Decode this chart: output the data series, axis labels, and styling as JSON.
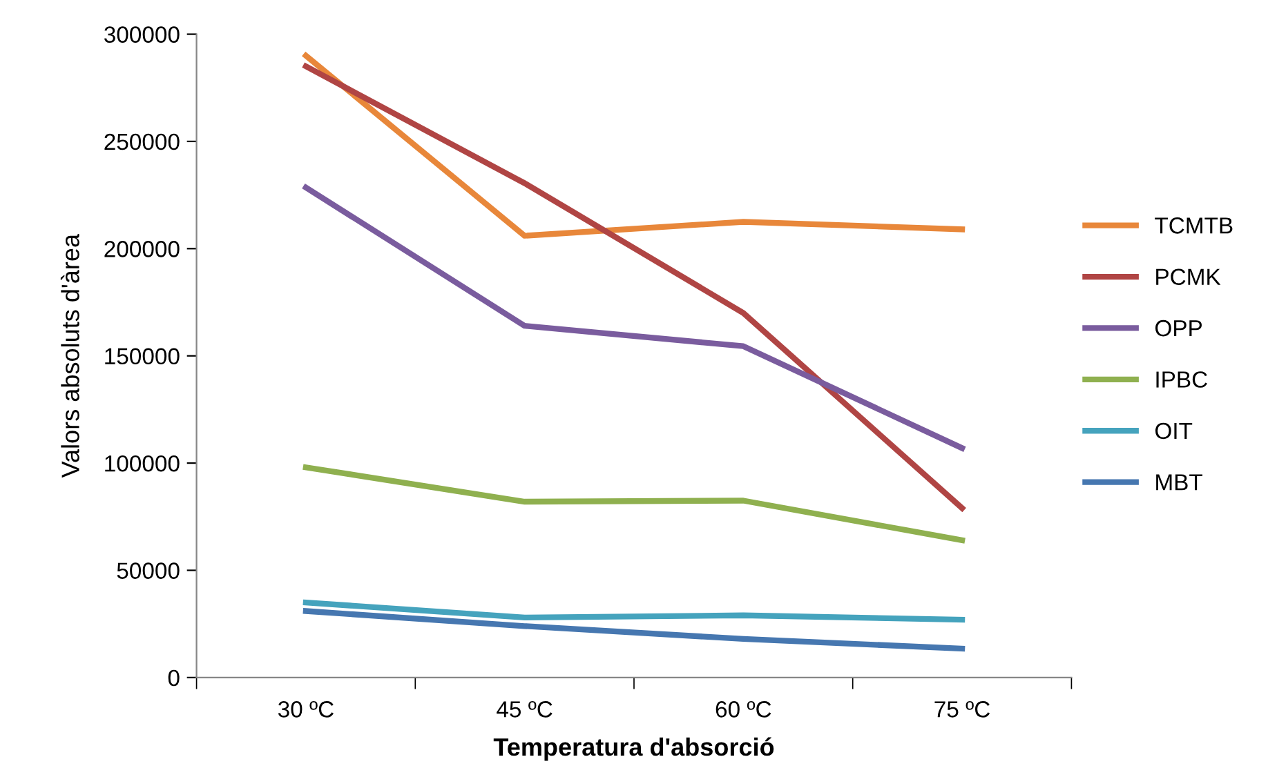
{
  "chart_data": {
    "type": "line",
    "xlabel": "Temperatura d'absorció",
    "ylabel": "Valors absoluts d'àrea",
    "categories": [
      "30 ºC",
      "45 ºC",
      "60 ºC",
      "75 ºC"
    ],
    "series": [
      {
        "name": "TCMTB",
        "color": "#e8873a",
        "values": [
          290000,
          206000,
          212500,
          209000
        ]
      },
      {
        "name": "PCMK",
        "color": "#b04544",
        "values": [
          285000,
          230500,
          170000,
          79000
        ]
      },
      {
        "name": "OPP",
        "color": "#7a5c9e",
        "values": [
          228500,
          164000,
          154500,
          107000
        ]
      },
      {
        "name": "IPBC",
        "color": "#8fb04f",
        "values": [
          98000,
          82000,
          82500,
          64000
        ]
      },
      {
        "name": "OIT",
        "color": "#45a3bd",
        "values": [
          35000,
          28000,
          29000,
          27000
        ]
      },
      {
        "name": "MBT",
        "color": "#4677b0",
        "values": [
          31000,
          24000,
          18000,
          13500
        ]
      }
    ],
    "ylim": [
      0,
      300000
    ],
    "yticks": [
      0,
      50000,
      100000,
      150000,
      200000,
      250000,
      300000
    ],
    "grid": false,
    "legend": "right",
    "marker": "none",
    "line_style": "solid"
  }
}
